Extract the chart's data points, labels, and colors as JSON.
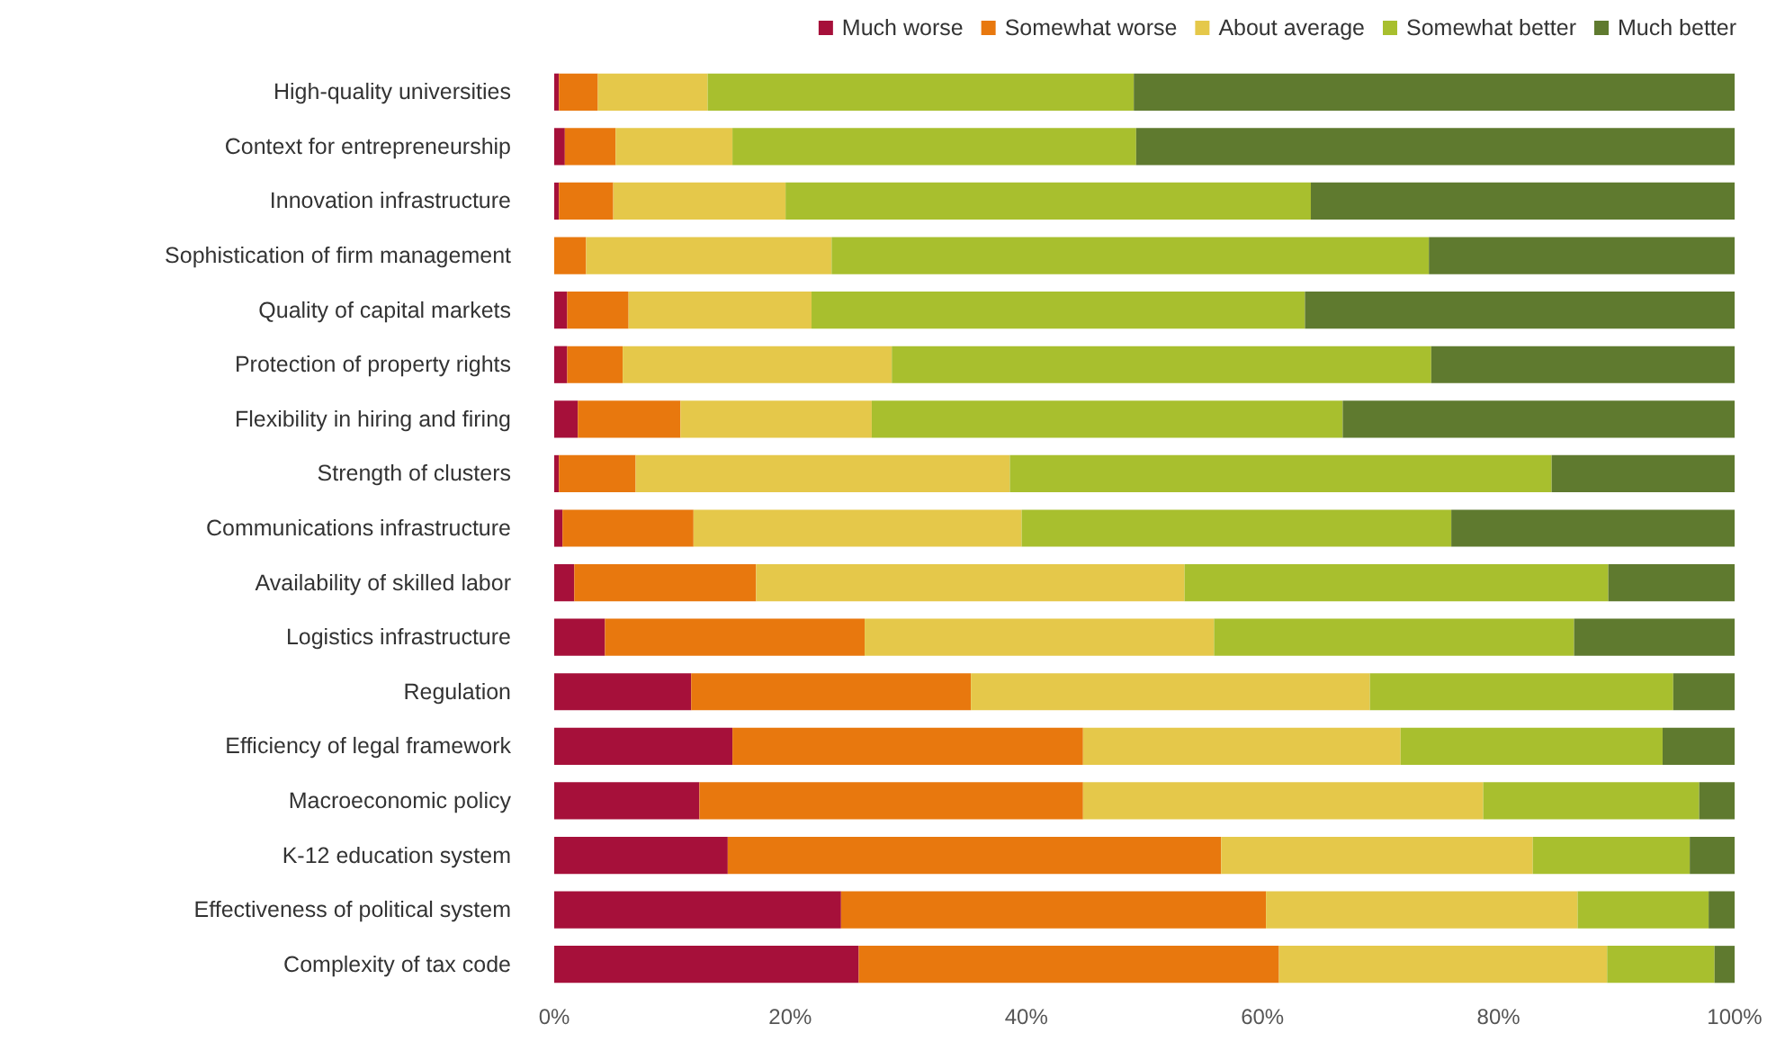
{
  "chart_data": {
    "type": "bar",
    "orientation": "horizontal",
    "stacked": true,
    "legend": "top right",
    "grid": false,
    "categories": [
      "High-quality universities",
      "Context for entrepreneurship",
      "Innovation infrastructure",
      "Sophistication of firm management",
      "Quality of capital markets",
      "Protection of property rights",
      "Flexibility in hiring and firing",
      "Strength of clusters",
      "Communications infrastructure",
      "Availability of skilled labor",
      "Logistics infrastructure",
      "Regulation",
      "Efficiency of legal framework",
      "Macroeconomic policy",
      "K-12 education system",
      "Effectiveness of political system",
      "Complexity of tax code"
    ],
    "series": [
      {
        "name": "Much worse",
        "color": "#a6103a",
        "values": [
          0.4,
          0.9,
          0.4,
          0,
          1.1,
          1.1,
          2,
          0.4,
          0.7,
          1.7,
          4.3,
          11.6,
          15.1,
          12.3,
          14.7,
          24.3,
          25.8
        ]
      },
      {
        "name": "Somewhat worse",
        "color": "#e8780e",
        "values": [
          3.3,
          4.3,
          4.6,
          2.7,
          5.2,
          4.7,
          8.7,
          6.5,
          11.1,
          15.4,
          22,
          23.7,
          29.7,
          32.5,
          41.8,
          36,
          35.6
        ]
      },
      {
        "name": "About average",
        "color": "#e5c84a",
        "values": [
          9.3,
          9.9,
          14.6,
          20.8,
          15.5,
          22.8,
          16.2,
          31.7,
          27.8,
          36.3,
          29.6,
          33.8,
          26.9,
          33.9,
          26.4,
          26.4,
          27.8
        ]
      },
      {
        "name": "Somewhat better",
        "color": "#a8bf2e",
        "values": [
          36.1,
          34.2,
          44.5,
          50.6,
          41.8,
          45.7,
          39.9,
          45.9,
          36.4,
          35.9,
          30.5,
          25.7,
          22.2,
          18.3,
          13.3,
          11.1,
          9.1
        ]
      },
      {
        "name": "Much better",
        "color": "#5f7a2f",
        "values": [
          50.9,
          50.7,
          35.9,
          25.9,
          36.4,
          25.7,
          33.2,
          15.5,
          24,
          10.7,
          13.6,
          5.2,
          6.1,
          3,
          3.8,
          2.2,
          1.7
        ]
      }
    ],
    "xlim": [
      0,
      100
    ],
    "xticks": [
      {
        "value": 0,
        "label": "0%"
      },
      {
        "value": 20,
        "label": "20%"
      },
      {
        "value": 40,
        "label": "40%"
      },
      {
        "value": 60,
        "label": "60%"
      },
      {
        "value": 80,
        "label": "80%"
      },
      {
        "value": 100,
        "label": "100%"
      }
    ]
  }
}
